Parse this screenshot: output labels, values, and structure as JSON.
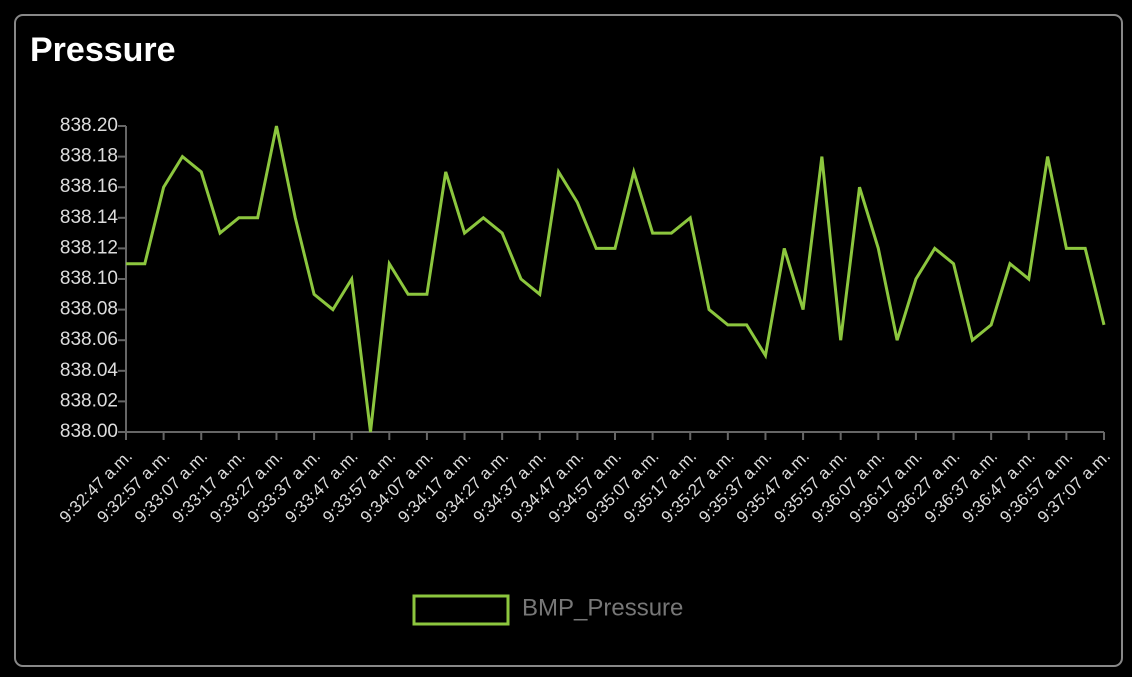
{
  "chart_data": {
    "type": "line",
    "title": "Pressure",
    "categories": [
      "9:32:47 a.m.",
      null,
      "9:32:57 a.m.",
      null,
      "9:33:07 a.m.",
      null,
      "9:33:17 a.m.",
      null,
      "9:33:27 a.m.",
      null,
      "9:33:37 a.m.",
      null,
      "9:33:47 a.m.",
      null,
      "9:33:57 a.m.",
      null,
      "9:34:07 a.m.",
      null,
      "9:34:17 a.m.",
      null,
      "9:34:27 a.m.",
      null,
      "9:34:37 a.m.",
      null,
      "9:34:47 a.m.",
      null,
      "9:34:57 a.m.",
      null,
      "9:35:07 a.m.",
      null,
      "9:35:17 a.m.",
      null,
      "9:35:27 a.m.",
      null,
      "9:35:37 a.m.",
      null,
      "9:35:47 a.m.",
      null,
      "9:35:57 a.m.",
      null,
      "9:36:07 a.m.",
      null,
      "9:36:17 a.m.",
      null,
      "9:36:27 a.m.",
      null,
      "9:36:37 a.m.",
      null,
      "9:36:47 a.m.",
      null,
      "9:36:57 a.m.",
      null,
      "9:37:07 a.m."
    ],
    "series": [
      {
        "name": "BMP_Pressure",
        "color": "#8cc63e",
        "values": [
          838.11,
          838.11,
          838.16,
          838.18,
          838.17,
          838.13,
          838.14,
          838.14,
          838.2,
          838.14,
          838.09,
          838.08,
          838.1,
          838.0,
          838.11,
          838.09,
          838.09,
          838.17,
          838.13,
          838.14,
          838.13,
          838.1,
          838.09,
          838.17,
          838.15,
          838.12,
          838.12,
          838.17,
          838.13,
          838.13,
          838.14,
          838.08,
          838.07,
          838.07,
          838.05,
          838.12,
          838.08,
          838.18,
          838.06,
          838.16,
          838.12,
          838.06,
          838.1,
          838.12,
          838.11,
          838.06,
          838.07,
          838.11,
          838.1,
          838.18,
          838.12,
          838.12,
          838.07
        ]
      }
    ],
    "ylim": [
      838.0,
      838.2
    ],
    "yticks": [
      {
        "value": 838.0,
        "label": "838.00"
      },
      838.02,
      838.04,
      838.06,
      838.08,
      {
        "value": 838.1,
        "label": "838.10"
      },
      838.12,
      838.14,
      838.16,
      838.18,
      {
        "value": 838.2,
        "label": "838.20"
      }
    ],
    "grid": false
  }
}
